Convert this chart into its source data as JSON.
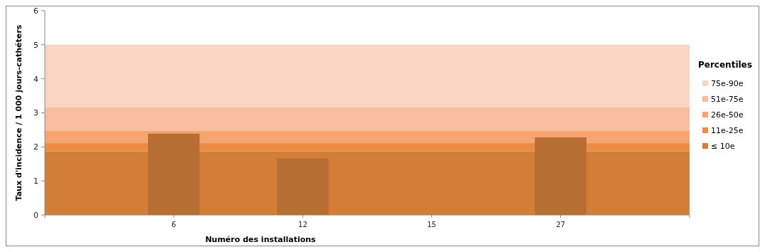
{
  "chart_data": {
    "type": "bar",
    "xlabel": "Numéro des installations",
    "ylabel": "Taux d'incidence  / 1 000 jours-cathéters",
    "legend_title": "Percentiles",
    "categories": [
      null,
      "6",
      "12",
      "15",
      "27",
      null
    ],
    "values": [
      null,
      2.39,
      1.66,
      null,
      2.28,
      null
    ],
    "color": "#b76e32",
    "ylim": [
      0,
      6
    ],
    "yticks": [
      0,
      1,
      2,
      3,
      4,
      5,
      6
    ],
    "grid": false,
    "legend": "right",
    "bands": [
      {
        "axis": "y",
        "from": 3.16,
        "to": 5.0,
        "label": "75e-90e",
        "color": "#f8d4c2"
      },
      {
        "axis": "y",
        "from": 2.47,
        "to": 3.16,
        "label": "51e-75e",
        "color": "#f7bd9e"
      },
      {
        "axis": "y",
        "from": 2.11,
        "to": 2.47,
        "label": "26e-50e",
        "color": "#f6a572"
      },
      {
        "axis": "y",
        "from": 1.87,
        "to": 2.11,
        "label": "11e-25e",
        "color": "#eb8c42"
      },
      {
        "axis": "y",
        "from": 0,
        "to": 1.87,
        "label": "≤ 10e",
        "color": "#d27e39"
      }
    ]
  }
}
